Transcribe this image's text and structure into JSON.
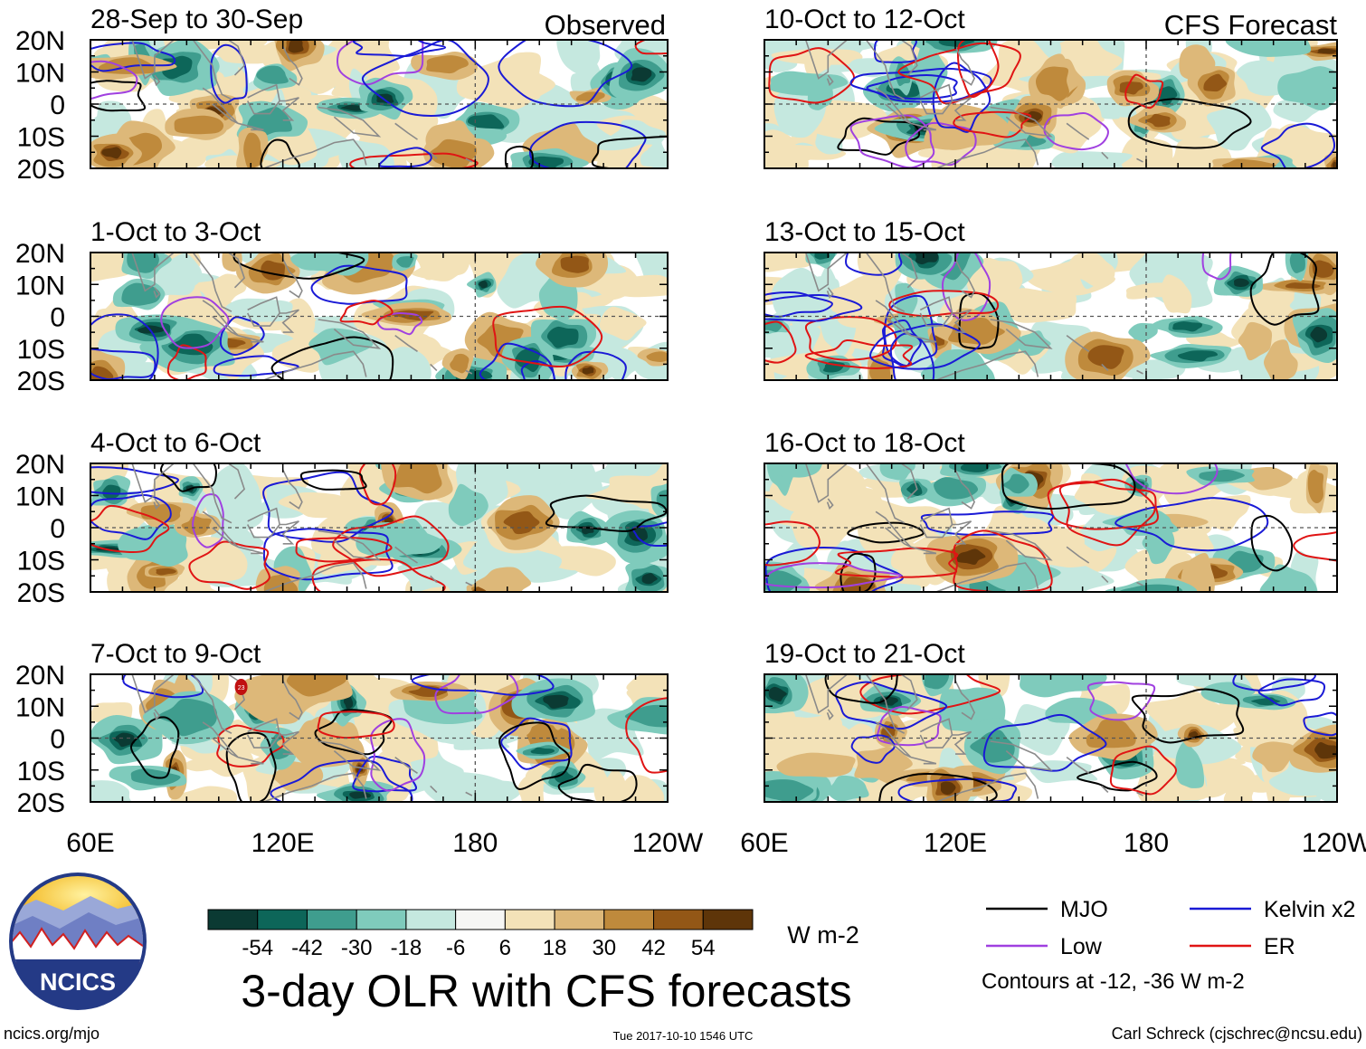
{
  "column_labels": {
    "left": "Observed",
    "right": "CFS Forecast"
  },
  "panels": [
    {
      "id": "obs-1",
      "column": "left",
      "row": 0,
      "date_range": "28-Sep to 30-Sep"
    },
    {
      "id": "obs-2",
      "column": "left",
      "row": 1,
      "date_range": "1-Oct to 3-Oct"
    },
    {
      "id": "obs-3",
      "column": "left",
      "row": 2,
      "date_range": "4-Oct to 6-Oct"
    },
    {
      "id": "obs-4",
      "column": "left",
      "row": 3,
      "date_range": "7-Oct to 9-Oct"
    },
    {
      "id": "fc-1",
      "column": "right",
      "row": 0,
      "date_range": "10-Oct to 12-Oct"
    },
    {
      "id": "fc-2",
      "column": "right",
      "row": 1,
      "date_range": "13-Oct to 15-Oct"
    },
    {
      "id": "fc-3",
      "column": "right",
      "row": 2,
      "date_range": "16-Oct to 18-Oct"
    },
    {
      "id": "fc-4",
      "column": "right",
      "row": 3,
      "date_range": "19-Oct to 21-Oct"
    }
  ],
  "lat_ticks": [
    "20N",
    "10N",
    "0",
    "10S",
    "20S"
  ],
  "lon_ticks": [
    "60E",
    "120E",
    "180",
    "120W"
  ],
  "colorbar": {
    "tick_labels": [
      "-54",
      "-42",
      "-30",
      "-18",
      "-6",
      "6",
      "18",
      "30",
      "42",
      "54"
    ],
    "colors": [
      "#0b3a33",
      "#0d6659",
      "#3f9d8e",
      "#7fcbbc",
      "#c5e8df",
      "#f6f6f4",
      "#f3e2b8",
      "#ddb879",
      "#bf8a3c",
      "#935716",
      "#5e3509"
    ],
    "units": "W m-2"
  },
  "legend": {
    "items": [
      {
        "label": "MJO",
        "color": "#000000"
      },
      {
        "label": "Kelvin x2",
        "color": "#1a1ad6"
      },
      {
        "label": "Low",
        "color": "#a040e0"
      },
      {
        "label": "ER",
        "color": "#e01414"
      }
    ],
    "note": "Contours at -12, -36 W m-2"
  },
  "title": "3-day OLR with CFS forecasts",
  "logo_text": "NCICS",
  "footer": {
    "left": "ncics.org/mjo",
    "center": "Tue 2017-10-10 1546 UTC",
    "right": "Carl Schreck (cjschrec@ncsu.edu)"
  },
  "stray_label": "23"
}
